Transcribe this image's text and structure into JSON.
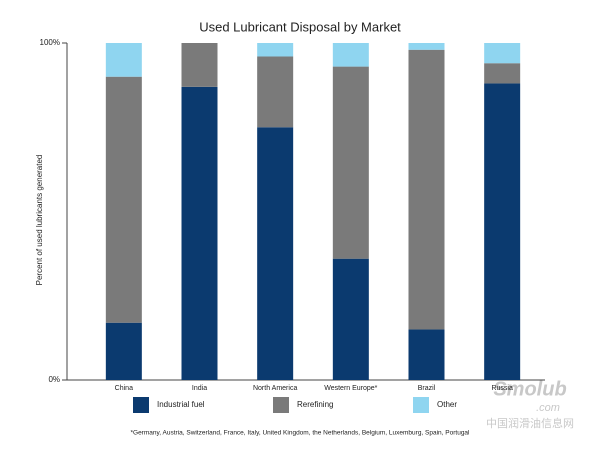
{
  "chart_data": {
    "type": "stacked_bar",
    "title": "Used Lubricant Disposal by Market",
    "y_label": "Percent of used lubricants generated",
    "categories": [
      "China",
      "India",
      "North America",
      "Western Europe*",
      "Brazil",
      "Russia"
    ],
    "series": [
      {
        "name": "Industrial fuel",
        "color": "#0b3a6f",
        "values": [
          17,
          87,
          75,
          36,
          15,
          88
        ]
      },
      {
        "name": "Rerefining",
        "color": "#7a7a7a",
        "values": [
          73,
          13,
          21,
          57,
          83,
          6
        ]
      },
      {
        "name": "Other",
        "color": "#8fd5f0",
        "values": [
          10,
          0,
          4,
          7,
          2,
          6
        ]
      }
    ],
    "ylim": [
      0,
      100
    ],
    "yticks": [
      {
        "value": 0,
        "label": "0%"
      },
      {
        "value": 100,
        "label": "100%"
      }
    ],
    "footnote": "*Germany, Austria, Switzerland, France, Italy, United Kingdom, the Netherlands, Belgium, Luxemburg, Spain, Portugal",
    "watermark": [
      "Smolub",
      ".com",
      "中国润滑油信息网"
    ]
  }
}
